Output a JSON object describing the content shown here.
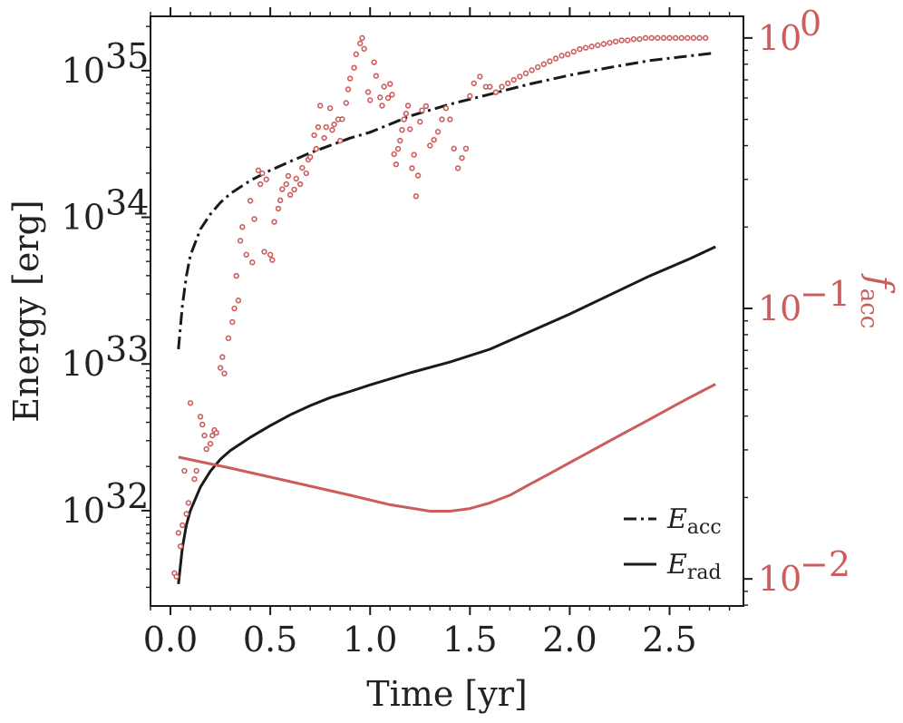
{
  "chart_data": {
    "type": "line",
    "xlabel": "Time [yr]",
    "ylabel_left": "Energy [erg]",
    "ylabel_right": "f",
    "ylabel_right_sub": "acc",
    "xlim": [
      -0.1,
      2.87
    ],
    "ylim_left_log10": [
      31.35,
      35.37
    ],
    "ylim_right_log10": [
      -2.1,
      0.08
    ],
    "x_ticks": [
      {
        "value": 0.0,
        "label": "0.0"
      },
      {
        "value": 0.5,
        "label": "0.5"
      },
      {
        "value": 1.0,
        "label": "1.0"
      },
      {
        "value": 1.5,
        "label": "1.5"
      },
      {
        "value": 2.0,
        "label": "2.0"
      },
      {
        "value": 2.5,
        "label": "2.5"
      }
    ],
    "y_left_ticks": [
      {
        "log10": 32,
        "base": "10",
        "exp": "32"
      },
      {
        "log10": 33,
        "base": "10",
        "exp": "33"
      },
      {
        "log10": 34,
        "base": "10",
        "exp": "34"
      },
      {
        "log10": 35,
        "base": "10",
        "exp": "35"
      }
    ],
    "y_right_ticks": [
      {
        "log10": -2,
        "base": "10",
        "exp": "−2"
      },
      {
        "log10": -1,
        "base": "10",
        "exp": "−1"
      },
      {
        "log10": 0,
        "base": "10",
        "exp": "0"
      }
    ],
    "legend": {
      "location": "lower-right",
      "entries": [
        {
          "symbol": "E",
          "sub": "acc",
          "style": "dashdot"
        },
        {
          "symbol": "E",
          "sub": "rad",
          "style": "solid"
        }
      ]
    },
    "colors": {
      "black": "#1a1a1a",
      "red": "#cd5c5c"
    },
    "series": [
      {
        "name": "E_acc",
        "axis": "left",
        "style": "dashdot",
        "color": "#1a1a1a",
        "x": [
          0.04,
          0.06,
          0.08,
          0.1,
          0.15,
          0.2,
          0.25,
          0.3,
          0.4,
          0.5,
          0.6,
          0.7,
          0.8,
          0.9,
          1.0,
          1.2,
          1.4,
          1.6,
          1.8,
          2.0,
          2.2,
          2.4,
          2.6,
          2.73
        ],
        "y": [
          1.26e+33,
          2.51e+33,
          3.98e+33,
          5.5e+33,
          8.3e+33,
          1.05e+34,
          1.26e+34,
          1.45e+34,
          1.78e+34,
          2.09e+34,
          2.4e+34,
          2.75e+34,
          3.09e+34,
          3.47e+34,
          3.8e+34,
          4.9e+34,
          5.9e+34,
          6.9e+34,
          8.1e+34,
          9.3e+34,
          1.05e+35,
          1.17e+35,
          1.26e+35,
          1.32e+35
        ]
      },
      {
        "name": "E_rad",
        "axis": "left",
        "style": "solid",
        "color": "#1a1a1a",
        "x": [
          0.04,
          0.06,
          0.08,
          0.1,
          0.15,
          0.2,
          0.25,
          0.3,
          0.4,
          0.5,
          0.6,
          0.7,
          0.8,
          0.9,
          1.0,
          1.2,
          1.4,
          1.6,
          1.8,
          2.0,
          2.2,
          2.4,
          2.6,
          2.73
        ],
        "y": [
          3.16e+31,
          5.6e+31,
          8e+31,
          1e+32,
          1.45e+32,
          1.86e+32,
          2.24e+32,
          2.57e+32,
          3.16e+32,
          3.8e+32,
          4.5e+32,
          5.2e+32,
          5.9e+32,
          6.5e+32,
          7.2e+32,
          8.7e+32,
          1.03e+33,
          1.26e+33,
          1.66e+33,
          2.19e+33,
          2.95e+33,
          3.98e+33,
          5.2e+33,
          6.3e+33
        ]
      },
      {
        "name": "f_acc (curve)",
        "axis": "right",
        "style": "solid",
        "color": "#cd5c5c",
        "x": [
          0.04,
          0.3,
          0.6,
          0.9,
          1.1,
          1.3,
          1.4,
          1.5,
          1.6,
          1.7,
          1.8,
          1.9,
          2.0,
          2.1,
          2.2,
          2.3,
          2.4,
          2.5,
          2.6,
          2.73
        ],
        "y": [
          0.0282,
          0.0257,
          0.0229,
          0.0204,
          0.0188,
          0.0178,
          0.0178,
          0.0182,
          0.0191,
          0.0204,
          0.0224,
          0.0245,
          0.0269,
          0.0295,
          0.0324,
          0.0355,
          0.0389,
          0.0427,
          0.0468,
          0.0525
        ]
      },
      {
        "name": "f_acc (points)",
        "axis": "right",
        "style": "markers",
        "color": "#cd5c5c",
        "x": [
          0.02,
          0.03,
          0.04,
          0.05,
          0.06,
          0.07,
          0.08,
          0.09,
          0.1,
          0.12,
          0.13,
          0.15,
          0.16,
          0.17,
          0.18,
          0.2,
          0.21,
          0.22,
          0.23,
          0.25,
          0.26,
          0.27,
          0.29,
          0.31,
          0.32,
          0.33,
          0.34,
          0.35,
          0.36,
          0.38,
          0.4,
          0.41,
          0.42,
          0.44,
          0.45,
          0.46,
          0.47,
          0.48,
          0.5,
          0.51,
          0.52,
          0.54,
          0.55,
          0.56,
          0.58,
          0.59,
          0.6,
          0.62,
          0.63,
          0.65,
          0.66,
          0.68,
          0.69,
          0.7,
          0.72,
          0.73,
          0.74,
          0.75,
          0.77,
          0.78,
          0.8,
          0.81,
          0.82,
          0.84,
          0.85,
          0.86,
          0.88,
          0.89,
          0.9,
          0.92,
          0.93,
          0.95,
          0.96,
          0.97,
          0.99,
          1.0,
          1.02,
          1.03,
          1.05,
          1.06,
          1.07,
          1.09,
          1.1,
          1.11,
          1.12,
          1.13,
          1.14,
          1.15,
          1.16,
          1.17,
          1.18,
          1.19,
          1.2,
          1.21,
          1.22,
          1.23,
          1.24,
          1.25,
          1.26,
          1.28,
          1.3,
          1.32,
          1.34,
          1.36,
          1.38,
          1.4,
          1.42,
          1.44,
          1.46,
          1.48,
          1.5,
          1.52,
          1.55,
          1.58,
          1.6,
          1.63,
          1.66,
          1.69,
          1.72,
          1.75,
          1.78,
          1.81,
          1.84,
          1.87,
          1.9,
          1.93,
          1.96,
          1.99,
          2.02,
          2.05,
          2.08,
          2.11,
          2.14,
          2.17,
          2.2,
          2.23,
          2.26,
          2.29,
          2.32,
          2.35,
          2.38,
          2.41,
          2.44,
          2.47,
          2.5,
          2.53,
          2.56,
          2.59,
          2.62,
          2.65,
          2.68
        ],
        "y": [
          0.0105,
          0.0102,
          0.0148,
          0.0132,
          0.0158,
          0.0251,
          0.0174,
          0.0191,
          0.0447,
          0.0234,
          0.0251,
          0.0398,
          0.0372,
          0.0339,
          0.0302,
          0.0316,
          0.0339,
          0.0355,
          0.0347,
          0.0603,
          0.0661,
          0.0575,
          0.0776,
          0.0891,
          0.1,
          0.132,
          0.107,
          0.178,
          0.2,
          0.158,
          0.25,
          0.148,
          0.214,
          0.324,
          0.288,
          0.316,
          0.162,
          0.3,
          0.158,
          0.151,
          0.209,
          0.234,
          0.251,
          0.276,
          0.288,
          0.309,
          0.263,
          0.275,
          0.302,
          0.288,
          0.331,
          0.316,
          0.355,
          0.363,
          0.437,
          0.389,
          0.468,
          0.562,
          0.427,
          0.468,
          0.55,
          0.457,
          0.479,
          0.5,
          0.417,
          0.501,
          0.575,
          0.646,
          0.708,
          0.776,
          0.871,
          0.955,
          1.0,
          0.912,
          0.631,
          0.589,
          0.813,
          0.724,
          0.603,
          0.562,
          0.661,
          0.6,
          0.676,
          0.617,
          0.372,
          0.341,
          0.389,
          0.417,
          0.457,
          0.5,
          0.525,
          0.562,
          0.46,
          0.33,
          0.37,
          0.26,
          0.31,
          0.49,
          0.54,
          0.56,
          0.4,
          0.42,
          0.45,
          0.5,
          0.55,
          0.5,
          0.39,
          0.33,
          0.36,
          0.39,
          0.61,
          0.68,
          0.72,
          0.66,
          0.66,
          0.63,
          0.66,
          0.68,
          0.7,
          0.72,
          0.74,
          0.76,
          0.78,
          0.8,
          0.82,
          0.84,
          0.86,
          0.87,
          0.89,
          0.91,
          0.92,
          0.93,
          0.94,
          0.95,
          0.96,
          0.97,
          0.98,
          0.98,
          0.99,
          0.99,
          1.0,
          1.0,
          1.0,
          1.0,
          1.0,
          1.0,
          1.0,
          1.0,
          1.0,
          1.0,
          1.0
        ]
      }
    ]
  }
}
